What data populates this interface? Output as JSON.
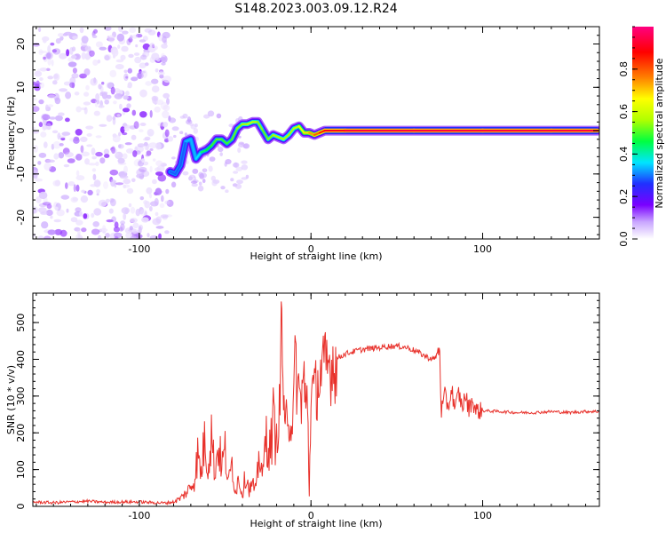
{
  "title": "S148.2023.003.09.12.R24",
  "chart_data": [
    {
      "type": "heatmap",
      "xlabel": "Height of straight line (km)",
      "ylabel": "Frequency (Hz)",
      "xlim": [
        -162,
        168
      ],
      "ylim": [
        -25,
        24
      ],
      "xticks": [
        -100,
        0,
        100
      ],
      "xtick_labels": [
        "-100",
        "0",
        "100"
      ],
      "yticks": [
        -20,
        -10,
        0,
        10,
        20
      ],
      "ytick_labels": [
        "-20",
        "-10",
        "0",
        "10",
        "20"
      ],
      "colorbar": {
        "label": "Normalized spectral amplitude",
        "range": [
          0,
          1
        ],
        "ticks": [
          0.0,
          0.2,
          0.4,
          0.6,
          0.8
        ],
        "tick_labels": [
          "0.0",
          "0.2",
          "0.4",
          "0.6",
          "0.8"
        ],
        "colors": [
          "#ffffff",
          "#c9a6ff",
          "#7a00ff",
          "#2030ff",
          "#00e5ff",
          "#00ff40",
          "#b0ff00",
          "#ffff00",
          "#ff8000",
          "#ff0000",
          "#ff0080"
        ]
      },
      "noise_region_x": [
        -162,
        -82
      ],
      "ridge": {
        "x": [
          -82,
          -79,
          -76,
          -73,
          -70,
          -67,
          -64,
          -61,
          -58,
          -55,
          -52,
          -49,
          -46,
          -43,
          -40,
          -37,
          -34,
          -31,
          -28,
          -25,
          -22,
          -19,
          -16,
          -13,
          -10,
          -7,
          -4,
          -1,
          2,
          5,
          8,
          20,
          60,
          100,
          140,
          167
        ],
        "y": [
          -9.5,
          -10,
          -8,
          -2.5,
          -2,
          -6.5,
          -5,
          -4.5,
          -3.5,
          -2,
          -2,
          -3,
          -2,
          0.5,
          1.5,
          1.5,
          2,
          2,
          0,
          -2,
          -1,
          -1.5,
          -2,
          -1,
          0.5,
          1,
          -0.5,
          -0.5,
          -1,
          -0.5,
          0,
          0,
          0,
          0,
          0,
          0
        ],
        "amp": [
          0.3,
          0.35,
          0.3,
          0.35,
          0.4,
          0.35,
          0.45,
          0.5,
          0.5,
          0.55,
          0.55,
          0.5,
          0.55,
          0.55,
          0.6,
          0.6,
          0.65,
          0.6,
          0.55,
          0.55,
          0.6,
          0.6,
          0.6,
          0.6,
          0.6,
          0.65,
          0.7,
          0.75,
          0.8,
          0.85,
          0.9,
          0.95,
          0.95,
          0.95,
          0.95,
          0.95
        ]
      }
    },
    {
      "type": "line",
      "xlabel": "Height of straight line (km)",
      "ylabel": "SNR (10 * v/v)",
      "xlim": [
        -162,
        168
      ],
      "ylim": [
        0,
        580
      ],
      "xticks": [
        -100,
        0,
        100
      ],
      "xtick_labels": [
        "-100",
        "0",
        "100"
      ],
      "yticks": [
        0,
        100,
        200,
        300,
        400,
        500
      ],
      "ytick_labels": [
        "0",
        "100",
        "200",
        "300",
        "400",
        "500"
      ],
      "color": "#e8312b",
      "series": [
        {
          "x": [
            -162,
            -150,
            -140,
            -130,
            -120,
            -110,
            -100,
            -90,
            -85,
            -80,
            -76,
            -72,
            -68,
            -66,
            -64,
            -62,
            -60,
            -58,
            -56,
            -54,
            -52,
            -50,
            -48,
            -46,
            -44,
            -42,
            -40,
            -38,
            -36,
            -34,
            -32,
            -30,
            -28,
            -26,
            -24,
            -22,
            -20,
            -18,
            -17,
            -16,
            -15,
            -14,
            -12,
            -10,
            -9,
            -8,
            -6,
            -4,
            -3,
            -2,
            -1,
            0,
            2,
            4,
            6,
            8,
            10,
            12,
            14,
            16,
            18,
            20,
            24,
            28,
            32,
            36,
            40,
            44,
            48,
            52,
            56,
            60,
            64,
            68,
            72,
            74,
            75,
            75.5,
            76,
            78,
            80,
            82,
            84,
            86,
            88,
            90,
            92,
            94,
            96,
            100,
            110,
            120,
            130,
            140,
            150,
            160,
            168
          ],
          "y": [
            12,
            10,
            12,
            14,
            11,
            12,
            12,
            10,
            9,
            12,
            22,
            40,
            70,
            140,
            90,
            180,
            110,
            200,
            90,
            170,
            110,
            150,
            60,
            120,
            40,
            80,
            30,
            90,
            45,
            60,
            40,
            150,
            80,
            200,
            150,
            230,
            180,
            280,
            570,
            260,
            180,
            300,
            210,
            280,
            410,
            320,
            290,
            350,
            250,
            300,
            30,
            320,
            300,
            340,
            360,
            370,
            380,
            390,
            395,
            405,
            410,
            415,
            420,
            425,
            428,
            430,
            432,
            435,
            436,
            435,
            432,
            425,
            415,
            405,
            400,
            420,
            430,
            320,
            260,
            300,
            270,
            320,
            260,
            310,
            270,
            300,
            265,
            290,
            260,
            260,
            258,
            255,
            255,
            258,
            255,
            258,
            258
          ]
        }
      ]
    }
  ]
}
